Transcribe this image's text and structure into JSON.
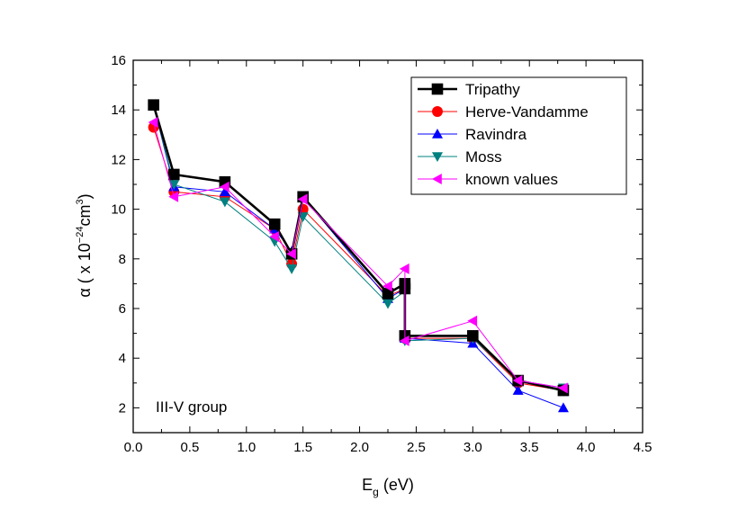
{
  "chart_data": {
    "type": "line",
    "xlabel": "E",
    "xlabel_sub": "g",
    "xlabel_unit": " (eV)",
    "ylabel": "α ( x 10",
    "ylabel_sup": "−24",
    "ylabel_unit": "cm",
    "ylabel_unit_sup": "3",
    "ylabel_close": ")",
    "xlim": [
      0.0,
      4.5
    ],
    "ylim": [
      1,
      16
    ],
    "xticks": [
      0.0,
      0.5,
      1.0,
      1.5,
      2.0,
      2.5,
      3.0,
      3.5,
      4.0,
      4.5
    ],
    "xtick_labels": [
      "0.0",
      "0.5",
      "1.0",
      "1.5",
      "2.0",
      "2.5",
      "3.0",
      "3.5",
      "4.0",
      "4.5"
    ],
    "yticks": [
      2,
      4,
      6,
      8,
      10,
      12,
      14,
      16
    ],
    "ytick_labels": [
      "2",
      "4",
      "6",
      "8",
      "10",
      "12",
      "14",
      "16"
    ],
    "annotation": "III-V group",
    "legend_position": "top-right",
    "grid": false,
    "series": [
      {
        "name": "Tripathy",
        "color": "#000000",
        "marker": "square",
        "x": [
          0.18,
          0.36,
          0.81,
          1.25,
          1.4,
          1.5,
          2.25,
          2.4,
          2.4,
          2.4,
          3.0,
          3.4,
          3.8
        ],
        "y": [
          14.2,
          11.4,
          11.1,
          9.4,
          8.2,
          10.5,
          6.6,
          7.0,
          6.8,
          4.9,
          4.9,
          3.1,
          2.7
        ]
      },
      {
        "name": "Herve-Vandamme",
        "color": "#ff0000",
        "marker": "circle",
        "x": [
          0.18,
          0.36,
          0.81,
          1.25,
          1.4,
          1.5,
          2.25,
          2.4,
          2.4,
          3.0,
          3.4,
          3.8
        ],
        "y": [
          13.3,
          10.7,
          10.5,
          9.2,
          7.8,
          10.0,
          6.5,
          6.8,
          4.8,
          4.8,
          3.0,
          2.7
        ]
      },
      {
        "name": "Ravindra",
        "color": "#0000ff",
        "marker": "triangle-up",
        "x": [
          0.18,
          0.36,
          0.81,
          1.25,
          1.4,
          1.5,
          2.25,
          2.4,
          2.4,
          3.0,
          3.4,
          3.8
        ],
        "y": [
          14.2,
          10.9,
          10.7,
          9.2,
          8.3,
          10.5,
          6.4,
          6.8,
          4.8,
          4.6,
          2.7,
          2.0
        ]
      },
      {
        "name": "Moss",
        "color": "#008080",
        "marker": "triangle-down",
        "x": [
          0.18,
          0.36,
          0.81,
          1.25,
          1.4,
          1.5,
          2.25,
          2.4,
          2.4,
          3.0,
          3.4,
          3.8
        ],
        "y": [
          14.2,
          11.0,
          10.3,
          8.7,
          7.6,
          9.7,
          6.2,
          6.7,
          4.7,
          4.8,
          3.1,
          2.8
        ]
      },
      {
        "name": "known values",
        "color": "#ff00ff",
        "marker": "triangle-left",
        "x": [
          0.18,
          0.36,
          0.81,
          1.25,
          1.4,
          1.5,
          2.25,
          2.4,
          2.4,
          3.0,
          3.4,
          3.8
        ],
        "y": [
          13.5,
          10.5,
          10.9,
          8.9,
          8.2,
          10.4,
          6.9,
          7.6,
          4.7,
          5.5,
          3.1,
          2.8
        ]
      }
    ]
  }
}
